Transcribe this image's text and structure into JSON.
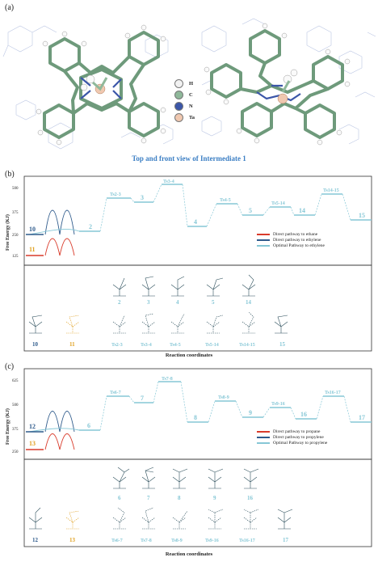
{
  "panel_a": {
    "label": "(a)",
    "caption": "Top and front view of Intermediate 1",
    "atom_legend": [
      {
        "symbol": "H",
        "color": "#f2f2f2"
      },
      {
        "symbol": "C",
        "color": "#8fb89a"
      },
      {
        "symbol": "N",
        "color": "#3b56a8"
      },
      {
        "symbol": "Ta",
        "color": "#f0c8b0"
      }
    ]
  },
  "panel_b": {
    "label": "(b)",
    "ylabel": "Free Energy (KJ)",
    "xlabel": "Reaction coordinates",
    "yticks": [
      "500",
      "375",
      "250",
      "125"
    ],
    "legend": [
      {
        "text": "Direct pathway to ethane",
        "color": "#d93b2b"
      },
      {
        "text": "Direct pathway to ethylene",
        "color": "#2f5b8c"
      },
      {
        "text": "Optimal Pathway to ethylene",
        "color": "#86c7d6"
      }
    ],
    "states": [
      "10",
      "11",
      "2",
      "Ts2-3",
      "3",
      "Ts3-4",
      "4",
      "Ts4-5",
      "5",
      "Ts5-14",
      "14",
      "Ts14-15",
      "15"
    ],
    "struct_labels_row1": [
      "2",
      "3",
      "4",
      "5",
      "14"
    ],
    "struct_labels_row2": [
      "10",
      "11",
      "Ts2-3",
      "Ts3-4",
      "Ts4-5",
      "Ts5-14",
      "Ts14-15",
      "15"
    ]
  },
  "panel_c": {
    "label": "(c)",
    "ylabel": "Free Energy (KJ)",
    "xlabel": "Reaction coordinates",
    "yticks": [
      "625",
      "500",
      "375",
      "250"
    ],
    "legend": [
      {
        "text": "Direct pathway to propane",
        "color": "#d93b2b"
      },
      {
        "text": "Direct pathway to propylene",
        "color": "#2f5b8c"
      },
      {
        "text": "Optimal Pathway to propylene",
        "color": "#86c7d6"
      }
    ],
    "states": [
      "12",
      "13",
      "6",
      "Ts6-7",
      "7",
      "Ts7-8",
      "8",
      "Ts8-9",
      "9",
      "Ts9-16",
      "16",
      "Ts16-17",
      "17"
    ],
    "struct_labels_row1": [
      "6",
      "7",
      "8",
      "9",
      "16"
    ],
    "struct_labels_row2": [
      "12",
      "13",
      "Ts6-7",
      "Ts7-8",
      "Ts8-9",
      "Ts9-16",
      "Ts16-17",
      "17"
    ]
  }
}
